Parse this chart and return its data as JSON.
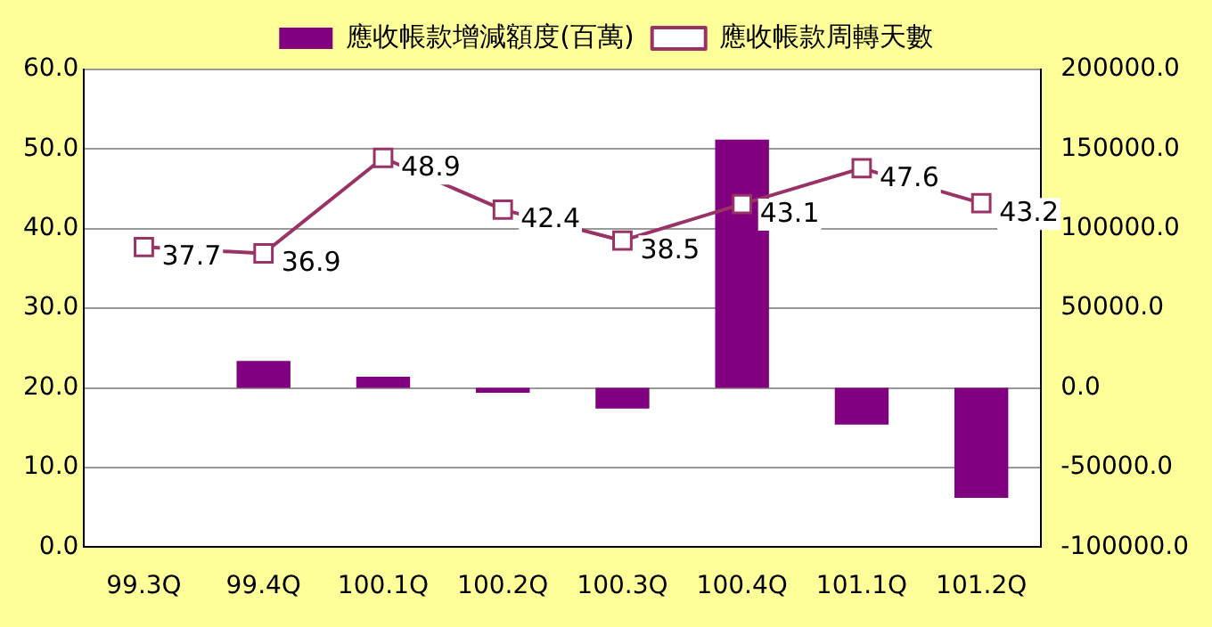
{
  "chart_data": {
    "type": "bar",
    "categories": [
      "99.3Q",
      "99.4Q",
      "100.1Q",
      "100.2Q",
      "100.3Q",
      "100.4Q",
      "101.1Q",
      "101.2Q"
    ],
    "series": [
      {
        "name": "應收帳款增減額度(百萬)",
        "axis": "y2",
        "color": "#800080",
        "values": [
          0,
          17000,
          7000,
          -3000,
          -13000,
          156000,
          -23000,
          -69000
        ]
      },
      {
        "name": "應收帳款周轉天數",
        "type": "line",
        "axis": "y",
        "color": "#993366",
        "marker": "square",
        "values": [
          37.7,
          36.9,
          48.9,
          42.4,
          38.5,
          43.1,
          47.6,
          43.2
        ],
        "value_labels": [
          "37.7",
          "36.9",
          "48.9",
          "42.4",
          "38.5",
          "43.1",
          "47.6",
          "43.2"
        ]
      }
    ],
    "ylim": [
      0,
      60
    ],
    "yticks": [
      {
        "value": 0,
        "label": "0.0"
      },
      {
        "value": 10,
        "label": "10.0"
      },
      {
        "value": 20,
        "label": "20.0"
      },
      {
        "value": 30,
        "label": "30.0"
      },
      {
        "value": 40,
        "label": "40.0"
      },
      {
        "value": 50,
        "label": "50.0"
      },
      {
        "value": 60,
        "label": "60.0"
      }
    ],
    "y2lim": [
      -100000,
      200000
    ],
    "y2ticks": [
      {
        "value": -100000,
        "label": "-100000.0"
      },
      {
        "value": -50000,
        "label": "-50000.0"
      },
      {
        "value": 0,
        "label": "0.0"
      },
      {
        "value": 50000,
        "label": "50000.0"
      },
      {
        "value": 100000,
        "label": "100000.0"
      },
      {
        "value": 150000,
        "label": "150000.0"
      },
      {
        "value": 200000,
        "label": "200000.0"
      }
    ],
    "grid": "y",
    "legend": "top"
  }
}
